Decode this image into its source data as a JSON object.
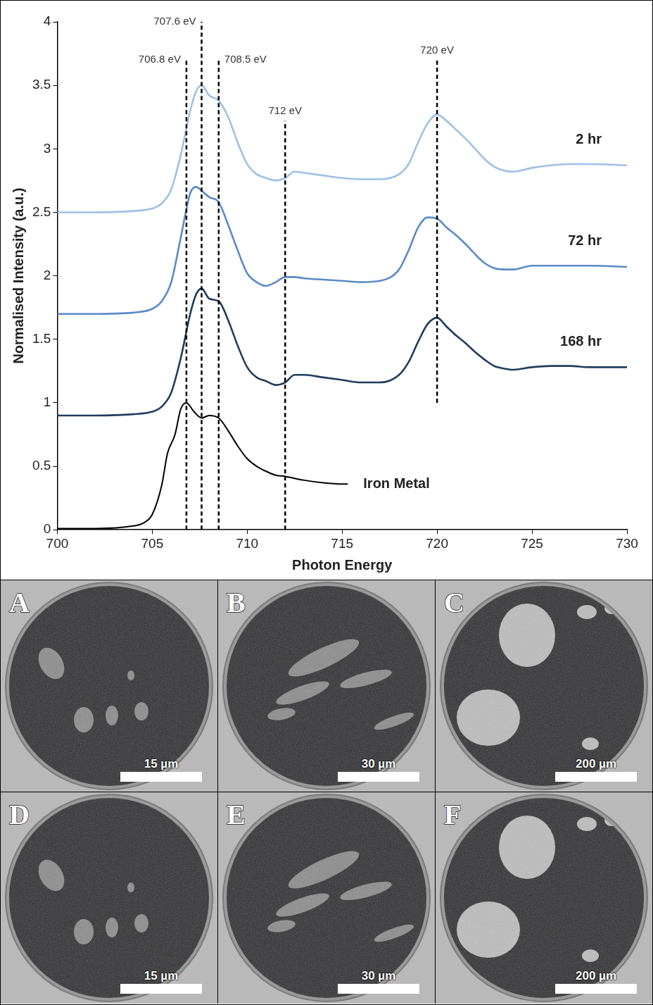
{
  "chart_data": {
    "type": "line",
    "x_label": "Photon Energy",
    "y_label": "Normalised Intensity (a.u.)",
    "xlim": [
      700,
      730
    ],
    "xticks": [
      700,
      705,
      710,
      715,
      720,
      725,
      730
    ],
    "ylim": [
      0,
      4
    ],
    "yticks": [
      0,
      0.5,
      1,
      1.5,
      2,
      2.5,
      3,
      3.5,
      4
    ],
    "grid": false,
    "series": [
      {
        "name": "2 hr",
        "color": "#9fc0e4",
        "x": [
          700,
          702,
          704,
          705,
          705.5,
          706,
          706.5,
          707,
          707.3,
          707.6,
          708,
          708.5,
          709,
          709.5,
          710,
          710.5,
          711,
          711.5,
          712,
          712.5,
          713,
          714,
          715,
          716,
          717,
          718,
          718.5,
          719,
          719.5,
          720,
          720.5,
          721,
          721.5,
          722,
          722.5,
          723,
          723.5,
          724,
          725,
          726,
          727,
          728,
          730
        ],
        "values": [
          2.5,
          2.5,
          2.51,
          2.53,
          2.57,
          2.68,
          2.95,
          3.3,
          3.45,
          3.5,
          3.42,
          3.38,
          3.25,
          3.05,
          2.88,
          2.8,
          2.77,
          2.75,
          2.77,
          2.82,
          2.81,
          2.79,
          2.77,
          2.76,
          2.76,
          2.8,
          2.88,
          3.05,
          3.2,
          3.27,
          3.22,
          3.15,
          3.08,
          3.0,
          2.92,
          2.86,
          2.83,
          2.82,
          2.85,
          2.87,
          2.88,
          2.88,
          2.87
        ]
      },
      {
        "name": "72 hr",
        "color": "#5a8bc6",
        "x": [
          700,
          702,
          704,
          705,
          705.5,
          706,
          706.5,
          707,
          707.3,
          707.6,
          708,
          708.5,
          709,
          709.5,
          710,
          710.5,
          711,
          711.5,
          712,
          712.5,
          713,
          714,
          715,
          716,
          717,
          718,
          718.5,
          719,
          719.5,
          720,
          720.5,
          721,
          721.5,
          722,
          722.5,
          723,
          723.5,
          724,
          725,
          726,
          727,
          728,
          730
        ],
        "values": [
          1.7,
          1.7,
          1.71,
          1.74,
          1.8,
          1.95,
          2.3,
          2.65,
          2.7,
          2.67,
          2.62,
          2.58,
          2.4,
          2.2,
          2.02,
          1.95,
          1.92,
          1.95,
          1.99,
          1.99,
          1.98,
          1.97,
          1.96,
          1.95,
          1.96,
          2.05,
          2.2,
          2.38,
          2.46,
          2.45,
          2.38,
          2.32,
          2.25,
          2.17,
          2.1,
          2.06,
          2.05,
          2.05,
          2.08,
          2.08,
          2.08,
          2.08,
          2.07
        ]
      },
      {
        "name": "168 hr",
        "color": "#203c5e",
        "x": [
          700,
          702,
          704,
          705,
          705.5,
          706,
          706.5,
          707,
          707.3,
          707.6,
          708,
          708.5,
          709,
          709.5,
          710,
          710.5,
          711,
          711.5,
          712,
          712.5,
          713,
          714,
          715,
          716,
          717,
          718,
          718.5,
          719,
          719.5,
          720,
          720.5,
          721,
          721.5,
          722,
          722.5,
          723,
          723.5,
          724,
          725,
          726,
          727,
          728,
          730
        ],
        "values": [
          0.9,
          0.9,
          0.91,
          0.93,
          0.97,
          1.08,
          1.35,
          1.7,
          1.85,
          1.9,
          1.82,
          1.8,
          1.65,
          1.45,
          1.28,
          1.2,
          1.17,
          1.14,
          1.16,
          1.22,
          1.22,
          1.2,
          1.18,
          1.16,
          1.16,
          1.22,
          1.32,
          1.48,
          1.62,
          1.67,
          1.6,
          1.53,
          1.47,
          1.4,
          1.34,
          1.29,
          1.27,
          1.26,
          1.28,
          1.29,
          1.29,
          1.28,
          1.28
        ]
      },
      {
        "name": "Iron Metal",
        "color": "#000000",
        "x": [
          700,
          702,
          704,
          704.5,
          705,
          705.5,
          705.8,
          706.2,
          706.5,
          706.8,
          707.2,
          707.6,
          708,
          708.5,
          709,
          709.5,
          710,
          710.5,
          711,
          711.5,
          712,
          713,
          714,
          715,
          715.3
        ],
        "values": [
          0.01,
          0.01,
          0.03,
          0.05,
          0.12,
          0.35,
          0.6,
          0.75,
          0.95,
          1.0,
          0.93,
          0.88,
          0.9,
          0.88,
          0.78,
          0.66,
          0.56,
          0.5,
          0.46,
          0.43,
          0.42,
          0.39,
          0.37,
          0.36,
          0.36
        ]
      }
    ],
    "annotations": [
      {
        "x": 706.8,
        "label": "706.8 eV",
        "y_range": [
          0,
          3.7
        ]
      },
      {
        "x": 707.6,
        "label": "707.6 eV",
        "y_range": [
          0,
          4
        ]
      },
      {
        "x": 708.5,
        "label": "708.5 eV",
        "y_range": [
          0,
          3.7
        ]
      },
      {
        "x": 712,
        "label": "712 eV",
        "y_range": [
          0,
          3.22
        ]
      },
      {
        "x": 720,
        "label": "720 eV",
        "y_range": [
          1.0,
          3.7
        ]
      }
    ]
  },
  "panels": [
    {
      "label": "A",
      "scale_bar": "15 µm"
    },
    {
      "label": "B",
      "scale_bar": "30 µm"
    },
    {
      "label": "C",
      "scale_bar": "200 µm"
    },
    {
      "label": "D",
      "scale_bar": "15 µm"
    },
    {
      "label": "E",
      "scale_bar": "30 µm"
    },
    {
      "label": "F",
      "scale_bar": "200 µm"
    }
  ]
}
